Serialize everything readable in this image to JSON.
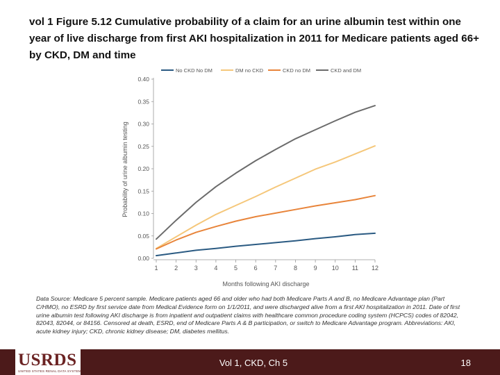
{
  "slide": {
    "title": "vol 1 Figure 5.12 Cumulative probability of a claim for an urine albumin test within one year of live discharge from first AKI hospitalization in 2011 for Medicare patients aged 66+ by CKD, DM and time",
    "source": "Data Source: Medicare 5 percent sample. Medicare patients aged 66 and older who had both Medicare Parts A and B, no Medicare Advantage plan (Part C/HMO), no ESRD by first service date from Medical Evidence form on 1/1/2011, and were discharged alive from a first AKI hospitalization in 2011. Date of first urine albumin test following AKI discharge is from inpatient and outpatient claims with healthcare common procedure coding system (HCPCS) codes of 82042, 82043, 82044, or 84156. Censored at death, ESRD, end of Medicare Parts A & B participation, or switch to Medicare Advantage program. Abbreviations: AKI, acute kidney injury; CKD, chronic kidney disease; DM, diabetes mellitus."
  },
  "footer": {
    "logo": "USRDS",
    "logo_sub": "UNITED STATES RENAL DATA SYSTEM",
    "center": "Vol 1, CKD, Ch 5",
    "page": "18",
    "bg_color": "#4c1a1a",
    "logo_color": "#6b2323"
  },
  "chart_data": {
    "type": "line",
    "title": "",
    "xlabel": "Months following AKI discharge",
    "ylabel": "Probability of urine albumin testing",
    "x": [
      1,
      2,
      3,
      4,
      5,
      6,
      7,
      8,
      9,
      10,
      11,
      12
    ],
    "xticks": [
      "1",
      "2",
      "3",
      "4",
      "5",
      "6",
      "7",
      "8",
      "9",
      "10",
      "11",
      "12"
    ],
    "yticks": [
      "0.00",
      "0.05",
      "0.10",
      "0.15",
      "0.20",
      "0.25",
      "0.30",
      "0.35",
      "0.40"
    ],
    "ylim": [
      0,
      0.4
    ],
    "legend_position": "top",
    "series": [
      {
        "name": "No CKD No DM",
        "color": "#2a5a82",
        "values": [
          0.006,
          0.012,
          0.018,
          0.022,
          0.027,
          0.031,
          0.035,
          0.039,
          0.044,
          0.048,
          0.053,
          0.056
        ]
      },
      {
        "name": "DM no CKD",
        "color": "#f5c77a",
        "values": [
          0.022,
          0.048,
          0.074,
          0.098,
          0.118,
          0.138,
          0.159,
          0.179,
          0.199,
          0.215,
          0.233,
          0.251
        ]
      },
      {
        "name": "CKD no DM",
        "color": "#e8843a",
        "values": [
          0.021,
          0.041,
          0.058,
          0.071,
          0.083,
          0.093,
          0.101,
          0.109,
          0.117,
          0.124,
          0.131,
          0.14
        ]
      },
      {
        "name": "CKD and DM",
        "color": "#6b6b6b",
        "values": [
          0.043,
          0.085,
          0.125,
          0.16,
          0.19,
          0.218,
          0.243,
          0.267,
          0.287,
          0.307,
          0.326,
          0.341
        ]
      }
    ]
  }
}
